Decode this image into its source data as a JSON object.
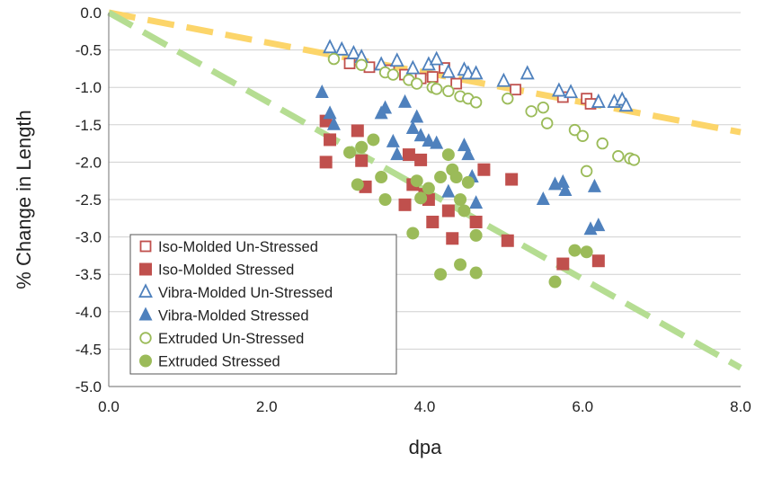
{
  "chart_data": {
    "type": "scatter",
    "xlabel": "dpa",
    "ylabel": "% Change in Length",
    "xlim": [
      0,
      8
    ],
    "ylim": [
      -5,
      0
    ],
    "xticks": [
      "0.0",
      "2.0",
      "4.0",
      "6.0",
      "8.0"
    ],
    "yticks": [
      "0.0",
      "-0.5",
      "-1.0",
      "-1.5",
      "-2.0",
      "-2.5",
      "-3.0",
      "-3.5",
      "-4.0",
      "-4.5",
      "-5.0"
    ],
    "grid": "horizontal",
    "legend_position": "bottom-left",
    "colors": {
      "iso": "#c0504d",
      "vibra": "#4f81bd",
      "extruded": "#9bbb59",
      "trend_unstressed": "#fcd56a",
      "trend_stressed": "#b5dd92"
    },
    "series": [
      {
        "name": "Iso-Molded Un-Stressed",
        "marker": "square",
        "filled": false,
        "color": "#c0504d",
        "points": [
          [
            3.05,
            -0.68
          ],
          [
            3.3,
            -0.73
          ],
          [
            3.55,
            -0.77
          ],
          [
            3.75,
            -0.83
          ],
          [
            3.95,
            -0.88
          ],
          [
            4.1,
            -0.86
          ],
          [
            4.25,
            -0.74
          ],
          [
            4.4,
            -0.95
          ],
          [
            5.15,
            -1.03
          ],
          [
            5.75,
            -1.13
          ],
          [
            6.05,
            -1.15
          ],
          [
            6.1,
            -1.22
          ]
        ]
      },
      {
        "name": "Iso-Molded Stressed",
        "marker": "square",
        "filled": true,
        "color": "#c0504d",
        "points": [
          [
            2.75,
            -1.45
          ],
          [
            2.75,
            -2.0
          ],
          [
            2.8,
            -1.7
          ],
          [
            3.15,
            -1.58
          ],
          [
            3.2,
            -1.98
          ],
          [
            3.25,
            -2.33
          ],
          [
            3.75,
            -2.57
          ],
          [
            3.8,
            -1.9
          ],
          [
            3.85,
            -2.3
          ],
          [
            3.95,
            -1.97
          ],
          [
            4.0,
            -2.43
          ],
          [
            4.05,
            -2.5
          ],
          [
            4.1,
            -2.8
          ],
          [
            4.3,
            -2.65
          ],
          [
            4.35,
            -3.02
          ],
          [
            4.65,
            -2.8
          ],
          [
            4.75,
            -2.1
          ],
          [
            5.05,
            -3.05
          ],
          [
            5.1,
            -2.23
          ],
          [
            5.75,
            -3.36
          ],
          [
            6.2,
            -3.32
          ]
        ]
      },
      {
        "name": "Vibra-Molded Un-Stressed",
        "marker": "triangle",
        "filled": false,
        "color": "#4f81bd",
        "points": [
          [
            2.8,
            -0.47
          ],
          [
            2.95,
            -0.5
          ],
          [
            3.1,
            -0.55
          ],
          [
            3.2,
            -0.6
          ],
          [
            3.45,
            -0.7
          ],
          [
            3.65,
            -0.65
          ],
          [
            3.85,
            -0.75
          ],
          [
            4.05,
            -0.7
          ],
          [
            4.15,
            -0.63
          ],
          [
            4.3,
            -0.8
          ],
          [
            4.5,
            -0.77
          ],
          [
            4.55,
            -0.82
          ],
          [
            4.65,
            -0.82
          ],
          [
            5.0,
            -0.92
          ],
          [
            5.3,
            -0.82
          ],
          [
            5.7,
            -1.05
          ],
          [
            5.85,
            -1.07
          ],
          [
            6.2,
            -1.2
          ],
          [
            6.4,
            -1.2
          ],
          [
            6.5,
            -1.17
          ],
          [
            6.55,
            -1.25
          ]
        ]
      },
      {
        "name": "Vibra-Molded Stressed",
        "marker": "triangle",
        "filled": true,
        "color": "#4f81bd",
        "points": [
          [
            2.7,
            -1.07
          ],
          [
            2.8,
            -1.35
          ],
          [
            2.85,
            -1.5
          ],
          [
            3.45,
            -1.35
          ],
          [
            3.5,
            -1.28
          ],
          [
            3.6,
            -1.73
          ],
          [
            3.65,
            -1.9
          ],
          [
            3.75,
            -1.2
          ],
          [
            3.85,
            -1.55
          ],
          [
            3.9,
            -1.4
          ],
          [
            3.95,
            -1.65
          ],
          [
            4.05,
            -1.72
          ],
          [
            4.15,
            -1.75
          ],
          [
            4.3,
            -2.4
          ],
          [
            4.5,
            -1.78
          ],
          [
            4.55,
            -1.9
          ],
          [
            4.6,
            -2.2
          ],
          [
            4.65,
            -2.55
          ],
          [
            5.5,
            -2.5
          ],
          [
            5.65,
            -2.3
          ],
          [
            5.75,
            -2.27
          ],
          [
            5.78,
            -2.38
          ],
          [
            6.1,
            -2.9
          ],
          [
            6.15,
            -2.33
          ],
          [
            6.2,
            -2.85
          ]
        ]
      },
      {
        "name": "Extruded Un-Stressed",
        "marker": "circle",
        "filled": false,
        "color": "#9bbb59",
        "points": [
          [
            2.85,
            -0.62
          ],
          [
            3.2,
            -0.7
          ],
          [
            3.5,
            -0.8
          ],
          [
            3.6,
            -0.83
          ],
          [
            3.8,
            -0.9
          ],
          [
            3.9,
            -0.95
          ],
          [
            4.1,
            -1.0
          ],
          [
            4.15,
            -1.02
          ],
          [
            4.3,
            -1.05
          ],
          [
            4.45,
            -1.12
          ],
          [
            4.55,
            -1.15
          ],
          [
            4.65,
            -1.2
          ],
          [
            5.05,
            -1.15
          ],
          [
            5.35,
            -1.32
          ],
          [
            5.5,
            -1.27
          ],
          [
            5.55,
            -1.48
          ],
          [
            5.9,
            -1.57
          ],
          [
            6.0,
            -1.65
          ],
          [
            6.05,
            -2.12
          ],
          [
            6.25,
            -1.75
          ],
          [
            6.45,
            -1.92
          ],
          [
            6.6,
            -1.95
          ],
          [
            6.65,
            -1.97
          ]
        ]
      },
      {
        "name": "Extruded Stressed",
        "marker": "circle",
        "filled": true,
        "color": "#9bbb59",
        "points": [
          [
            3.05,
            -1.87
          ],
          [
            3.15,
            -2.3
          ],
          [
            3.2,
            -1.8
          ],
          [
            3.35,
            -1.7
          ],
          [
            3.45,
            -2.2
          ],
          [
            3.5,
            -2.5
          ],
          [
            3.85,
            -2.95
          ],
          [
            3.9,
            -2.25
          ],
          [
            3.95,
            -2.48
          ],
          [
            4.05,
            -2.35
          ],
          [
            4.2,
            -2.2
          ],
          [
            4.3,
            -1.9
          ],
          [
            4.35,
            -2.1
          ],
          [
            4.4,
            -2.2
          ],
          [
            4.45,
            -2.5
          ],
          [
            4.5,
            -2.65
          ],
          [
            4.55,
            -2.27
          ],
          [
            4.65,
            -2.98
          ],
          [
            4.2,
            -3.5
          ],
          [
            4.45,
            -3.37
          ],
          [
            4.65,
            -3.48
          ],
          [
            5.65,
            -3.6
          ],
          [
            5.9,
            -3.18
          ],
          [
            6.05,
            -3.2
          ]
        ]
      }
    ],
    "trendlines": [
      {
        "style": "dashed",
        "color": "#fcd56a",
        "x": [
          0.0,
          8.0
        ],
        "y": [
          0.0,
          -1.6
        ]
      },
      {
        "style": "dashed",
        "color": "#b5dd92",
        "x": [
          0.0,
          8.0
        ],
        "y": [
          0.0,
          -4.75
        ]
      }
    ]
  }
}
